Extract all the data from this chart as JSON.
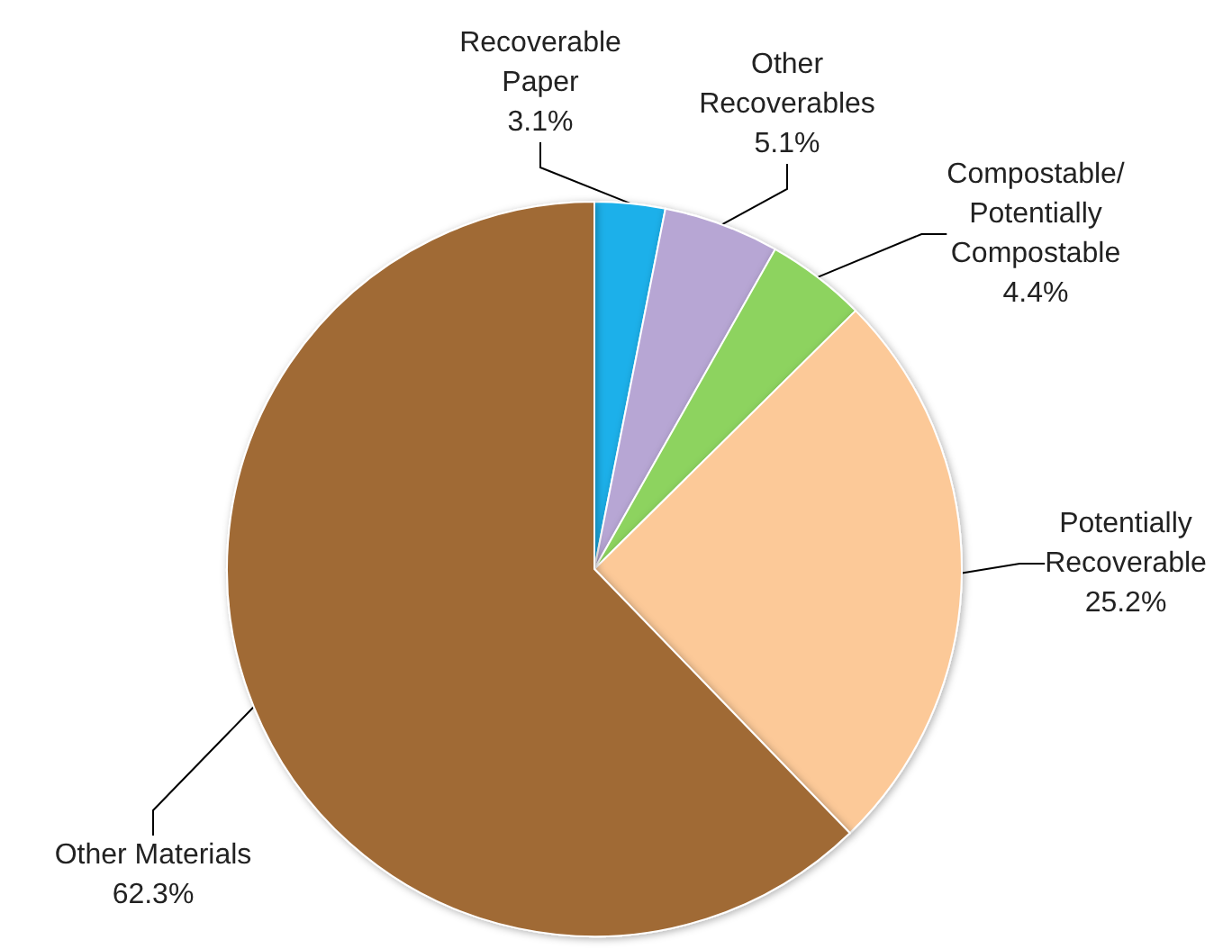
{
  "chart_data": {
    "type": "pie",
    "categories": [
      "Recoverable\nPaper",
      "Other\nRecoverables",
      "Compostable/\nPotentially\nCompostable",
      "Potentially\nRecoverable",
      "Other Materials"
    ],
    "values": [
      3.1,
      5.1,
      4.4,
      25.2,
      62.3
    ],
    "colors": [
      "#1ab0ea",
      "#b7a6d4",
      "#8dd35f",
      "#fcc998",
      "#a06a36"
    ],
    "value_labels": [
      "3.1%",
      "5.1%",
      "4.4%",
      "25.2%",
      "62.3%"
    ]
  }
}
